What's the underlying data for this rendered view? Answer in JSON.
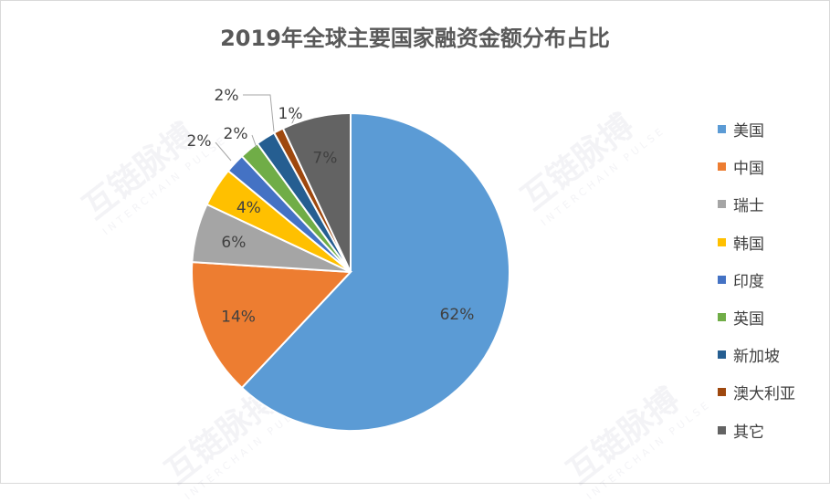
{
  "chart_data": {
    "type": "pie",
    "title": "2019年全球主要国家融资金额分布占比",
    "categories": [
      "美国",
      "中国",
      "瑞士",
      "韩国",
      "印度",
      "英国",
      "新加坡",
      "澳大利亚",
      "其它"
    ],
    "values": [
      62,
      14,
      6,
      4,
      2,
      2,
      2,
      1,
      7
    ],
    "data_labels": [
      "62%",
      "14%",
      "6%",
      "4%",
      "2%",
      "2%",
      "2%",
      "1%",
      "7%"
    ],
    "colors": [
      "#5b9bd5",
      "#ed7d31",
      "#a5a5a5",
      "#ffc000",
      "#4472c4",
      "#70ad47",
      "#255e91",
      "#9e480e",
      "#636363"
    ],
    "legend_position": "right"
  },
  "watermark": {
    "text": "互链脉搏",
    "subtext": "INTERCHAIN PULSE"
  }
}
